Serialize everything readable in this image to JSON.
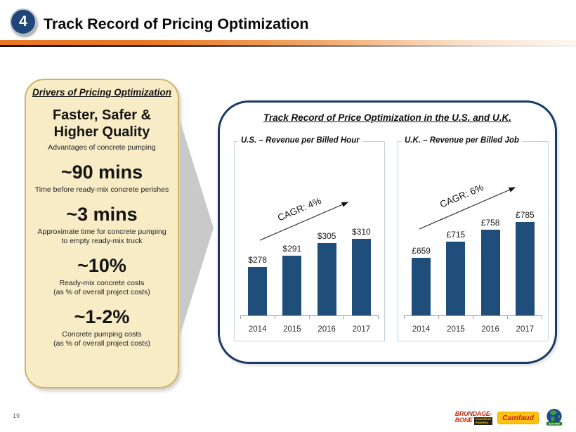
{
  "header": {
    "badge": "4",
    "title": "Track Record of Pricing Optimization"
  },
  "drivers_panel": {
    "title": "Drivers of Pricing Optimization",
    "items": [
      {
        "stat": "Faster, Safer &\nHigher Quality",
        "caption": "Advantages  of concrete pumping"
      },
      {
        "stat": "~90 mins",
        "caption": "Time before ready-mix concrete perishes"
      },
      {
        "stat": "~3 mins",
        "caption": "Approximate time for  concrete pumping\nto empty ready-mix truck"
      },
      {
        "stat": "~10%",
        "caption": "Ready-mix  concrete costs\n(as % of overall  project costs)"
      },
      {
        "stat": "~1-2%",
        "caption": "Concrete pumping costs\n(as % of overall  project costs)"
      }
    ]
  },
  "charts_panel": {
    "title": "Track Record of Price Optimization in the U.S.  and U.K."
  },
  "chart_data": [
    {
      "type": "bar",
      "title": "U.S. – Revenue  per Billed Hour",
      "categories": [
        "2014",
        "2015",
        "2016",
        "2017"
      ],
      "values": [
        278,
        291,
        305,
        310
      ],
      "value_labels": [
        "$278",
        "$291",
        "$305",
        "$310"
      ],
      "annotation": "CAGR: 4%",
      "currency": "USD",
      "ylim": [
        222,
        334
      ],
      "bar_color": "#1F4E7B",
      "grid": false,
      "legend_position": "top-left-border"
    },
    {
      "type": "bar",
      "title": "U.K. – Revenue  per Billed Job",
      "categories": [
        "2014",
        "2015",
        "2016",
        "2017"
      ],
      "values": [
        659,
        715,
        758,
        785
      ],
      "value_labels": [
        "£659",
        "£715",
        "£758",
        "£785"
      ],
      "annotation": "CAGR: 6%",
      "currency": "GBP",
      "ylim": [
        455,
        800
      ],
      "bar_color": "#1F4E7B",
      "grid": false,
      "legend_position": "top-left-border"
    }
  ],
  "footer": {
    "page_number": "19",
    "logos": {
      "brundage_bone": {
        "line1": "BRUNDAGE-",
        "line2": "BONE",
        "badge": "CONCRETE\nPUMPING"
      },
      "camfaud": {
        "label": "Camfaud"
      },
      "ecopan": {
        "label": "ECO-PAN"
      }
    }
  },
  "colors": {
    "bar_blue": "#1F4E7B",
    "panel_navy_border": "#1B3A66",
    "cream_bg": "#F8ECC6",
    "cream_border": "#CDB467",
    "accent_orange": "#E87722",
    "arrow_gray": "#C9C9C9"
  }
}
